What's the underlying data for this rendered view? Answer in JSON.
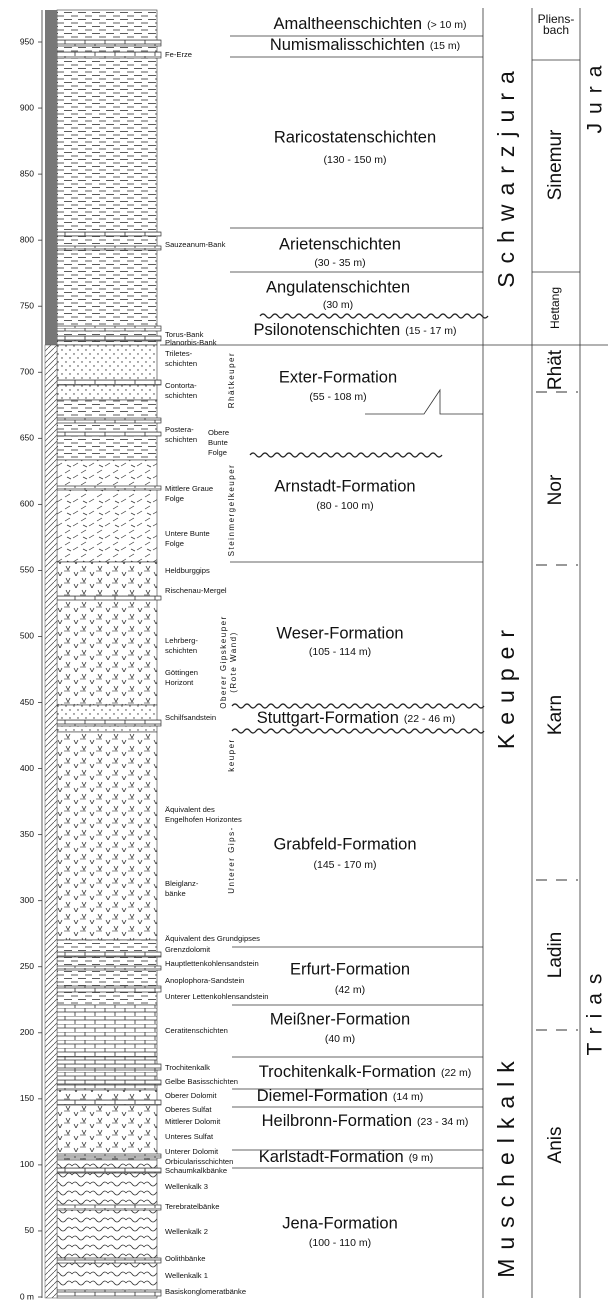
{
  "axis": {
    "ticks": [
      "950",
      "900",
      "850",
      "800",
      "750",
      "700",
      "650",
      "600",
      "550",
      "500",
      "450",
      "400",
      "350",
      "300",
      "250",
      "200",
      "150",
      "100",
      "50",
      "0 m"
    ]
  },
  "formations": [
    {
      "name": "Amaltheenschichten",
      "thickness": "(> 10 m)"
    },
    {
      "name": "Numismalisschichten",
      "thickness": "(15 m)"
    },
    {
      "name": "Raricostatenschichten",
      "thickness": "(130 - 150 m)"
    },
    {
      "name": "Arietenschichten",
      "thickness": "(30 - 35 m)"
    },
    {
      "name": "Angulatenschichten",
      "thickness": "(30 m)"
    },
    {
      "name": "Psilonotenschichten",
      "thickness": "(15 - 17 m)"
    },
    {
      "name": "Exter-Formation",
      "thickness": "(55 - 108 m)"
    },
    {
      "name": "Arnstadt-Formation",
      "thickness": "(80 - 100 m)"
    },
    {
      "name": "Weser-Formation",
      "thickness": "(105 - 114 m)"
    },
    {
      "name": "Stuttgart-Formation",
      "thickness": "(22 - 46 m)"
    },
    {
      "name": "Grabfeld-Formation",
      "thickness": "(145 - 170 m)"
    },
    {
      "name": "Erfurt-Formation",
      "thickness": "(42 m)"
    },
    {
      "name": "Meißner-Formation",
      "thickness": "(40 m)"
    },
    {
      "name": "Trochitenkalk-Formation",
      "thickness": "(22 m)"
    },
    {
      "name": "Diemel-Formation",
      "thickness": "(14 m)"
    },
    {
      "name": "Heilbronn-Formation",
      "thickness": "(23 - 34 m)"
    },
    {
      "name": "Karlstadt-Formation",
      "thickness": "(9 m)"
    },
    {
      "name": "Jena-Formation",
      "thickness": "(100 - 110 m)"
    }
  ],
  "beds": [
    [
      "Fe-Erze"
    ],
    [
      "Sauzeanum-Bank"
    ],
    [
      "Torus-Bank"
    ],
    [
      "Planorbis-Bank"
    ],
    [
      "Triletes-",
      "schichten"
    ],
    [
      "Contorta-",
      "schichten"
    ],
    [
      "Postera-",
      "schichten"
    ],
    [
      "Obere",
      "Bunte",
      "Folge"
    ],
    [
      "Mittlere Graue",
      "Folge"
    ],
    [
      "Untere Bunte",
      "Folge"
    ],
    [
      "Heldburggips"
    ],
    [
      "Rischenau-Mergel"
    ],
    [
      "Lehrberg-",
      "schichten"
    ],
    [
      "Göttingen",
      "Horizont"
    ],
    [
      "Schilfsandstein"
    ],
    [
      "Äquivalent des",
      "Engelhofen Horizontes"
    ],
    [
      "Bleiglanz-",
      "bänke"
    ],
    [
      "Äquivalent des Grundgipses"
    ],
    [
      "Grenzdolomit"
    ],
    [
      "Hauptlettenkohlensandstein"
    ],
    [
      "Anoplophora-Sandstein"
    ],
    [
      "Unterer Lettenkohlensandstein"
    ],
    [
      "Ceratitenschichten"
    ],
    [
      "Trochitenkalk"
    ],
    [
      "Gelbe Basisschichten"
    ],
    [
      "Oberer Dolomit"
    ],
    [
      "Oberes Sulfat"
    ],
    [
      "Mittlerer Dolomit"
    ],
    [
      "Unteres Sulfat"
    ],
    [
      "Unterer Dolomit"
    ],
    [
      "Orbicularisschichten"
    ],
    [
      "Schaumkalkbänke"
    ],
    [
      "Wellenkalk 3"
    ],
    [
      "Terebratelbänke"
    ],
    [
      "Wellenkalk 2"
    ],
    [
      "Oolithbänke"
    ],
    [
      "Wellenkalk 1"
    ],
    [
      "Basiskonglomeratbänke"
    ]
  ],
  "subdivisions": [
    [
      "Rhätkeuper"
    ],
    [
      "Steinmergelkeuper"
    ],
    [
      "Oberer Gipskeuper",
      "(Rote Wand)"
    ],
    [
      "keuper"
    ],
    [
      "Unterer Gips-"
    ]
  ],
  "groups": [
    "Schwarzjura",
    "Keuper",
    "Muschelkalk"
  ],
  "stages": [
    [
      "Pliens-",
      "bach"
    ],
    [
      "Sinemur"
    ],
    [
      "Hettang"
    ],
    [
      "Rhät"
    ],
    [
      "Nor"
    ],
    [
      "Karn"
    ],
    [
      "Ladin"
    ],
    [
      "Anis"
    ]
  ],
  "systems": [
    "Jura",
    "Trias"
  ]
}
